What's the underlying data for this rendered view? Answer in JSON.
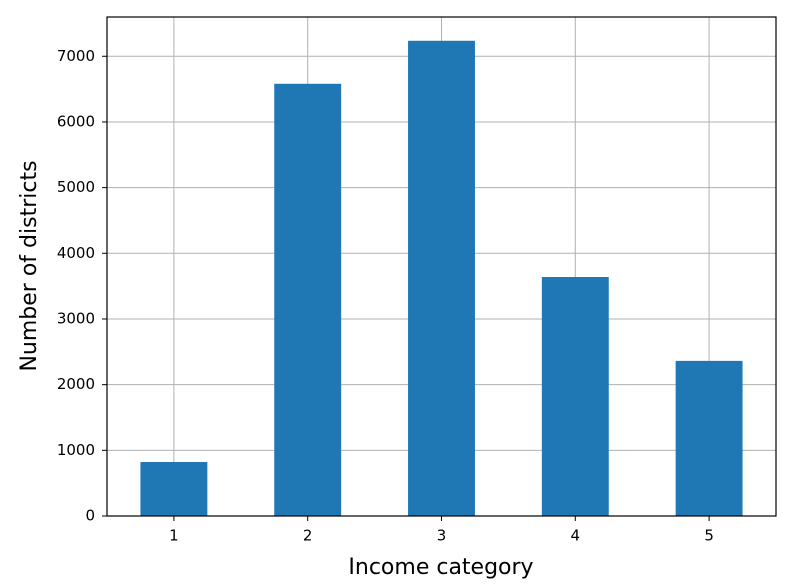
{
  "chart_data": {
    "type": "bar",
    "x_label": "Income category",
    "y_label": "Number of districts",
    "categories": [
      "1",
      "2",
      "3",
      "4",
      "5"
    ],
    "values": [
      822,
      6581,
      7236,
      3639,
      2362
    ],
    "color": "#1f77b4",
    "ylim": [
      0,
      7598
    ],
    "yticks": [
      0,
      1000,
      2000,
      3000,
      4000,
      5000,
      6000,
      7000
    ],
    "grid": true
  }
}
